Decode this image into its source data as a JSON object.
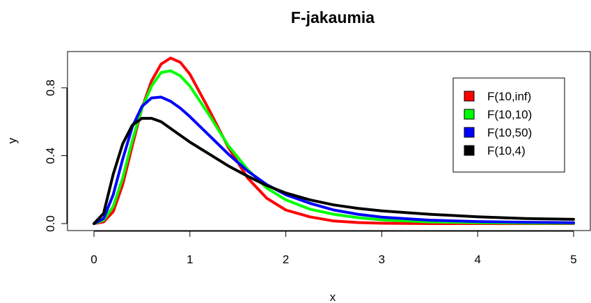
{
  "chart_data": {
    "type": "line",
    "title": "F-jakaumia",
    "xlabel": "x",
    "ylabel": "y",
    "xlim": [
      0,
      5
    ],
    "ylim": [
      0,
      1
    ],
    "x_ticks": [
      "0",
      "1",
      "2",
      "3",
      "4",
      "5"
    ],
    "y_ticks": [
      "0.0",
      "0.4",
      "0.8"
    ],
    "legend_position": "top-right",
    "grid": false,
    "x": [
      0,
      0.1,
      0.2,
      0.3,
      0.4,
      0.5,
      0.6,
      0.7,
      0.8,
      0.9,
      1.0,
      1.2,
      1.4,
      1.6,
      1.8,
      2.0,
      2.25,
      2.5,
      2.75,
      3.0,
      3.5,
      4.0,
      4.5,
      5.0
    ],
    "series": [
      {
        "name": "F(10,inf)",
        "color": "#ff0000",
        "values": [
          0,
          0.01,
          0.07,
          0.23,
          0.46,
          0.68,
          0.84,
          0.94,
          0.975,
          0.95,
          0.88,
          0.67,
          0.45,
          0.27,
          0.15,
          0.08,
          0.04,
          0.015,
          0.006,
          0.002,
          0,
          0,
          0,
          0
        ]
      },
      {
        "name": "F(10,10)",
        "color": "#00ff00",
        "values": [
          0,
          0.02,
          0.1,
          0.27,
          0.49,
          0.68,
          0.81,
          0.89,
          0.9,
          0.87,
          0.81,
          0.64,
          0.46,
          0.32,
          0.21,
          0.14,
          0.085,
          0.055,
          0.035,
          0.022,
          0.01,
          0.005,
          0.003,
          0.002
        ]
      },
      {
        "name": "F(10,50)",
        "color": "#0000ff",
        "values": [
          0,
          0.03,
          0.17,
          0.38,
          0.57,
          0.69,
          0.74,
          0.745,
          0.72,
          0.68,
          0.63,
          0.52,
          0.41,
          0.31,
          0.23,
          0.17,
          0.12,
          0.08,
          0.055,
          0.038,
          0.02,
          0.012,
          0.008,
          0.005
        ]
      },
      {
        "name": "F(10,4)",
        "color": "#000000",
        "values": [
          0,
          0.06,
          0.29,
          0.47,
          0.58,
          0.62,
          0.62,
          0.6,
          0.56,
          0.52,
          0.48,
          0.41,
          0.34,
          0.28,
          0.225,
          0.18,
          0.14,
          0.11,
          0.09,
          0.075,
          0.055,
          0.04,
          0.03,
          0.025
        ]
      }
    ]
  }
}
